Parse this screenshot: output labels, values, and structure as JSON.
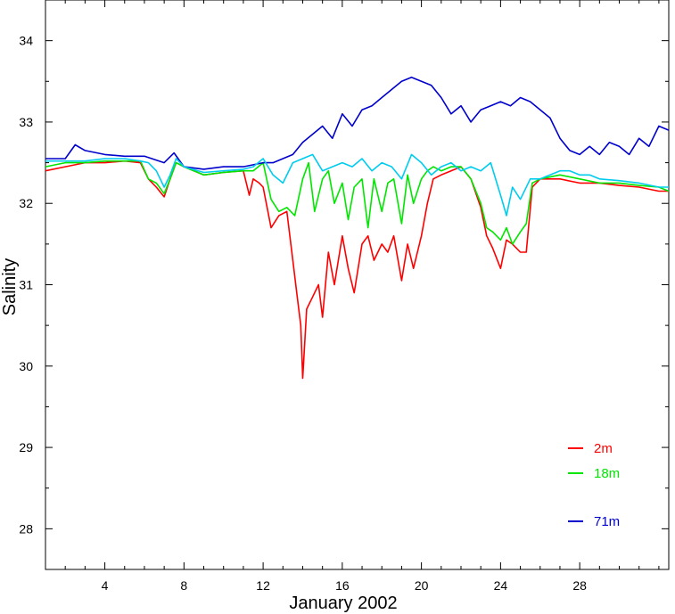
{
  "chart_data": {
    "type": "line",
    "xlabel": "January 2002",
    "ylabel": "Salinity",
    "xlim": [
      1,
      32.5
    ],
    "ylim": [
      27.5,
      34.5
    ],
    "xticks": [
      4,
      8,
      12,
      16,
      20,
      24,
      28
    ],
    "yticks": [
      28,
      29,
      30,
      31,
      32,
      33,
      34
    ],
    "grid": false,
    "legend_position": "bottom-right",
    "series": [
      {
        "name": "2m",
        "color": "#ff0000",
        "x": [
          1,
          2,
          3,
          4,
          5,
          5.8,
          6.2,
          6.6,
          7.0,
          7.3,
          7.6,
          8.0,
          9.0,
          10.0,
          11.0,
          11.3,
          11.5,
          11.8,
          12.0,
          12.4,
          12.8,
          13.2,
          13.5,
          13.7,
          13.9,
          14.0,
          14.2,
          14.5,
          14.8,
          15.0,
          15.3,
          15.6,
          16.0,
          16.3,
          16.6,
          17.0,
          17.3,
          17.6,
          18.0,
          18.3,
          18.6,
          19.0,
          19.3,
          19.6,
          20.0,
          20.3,
          20.6,
          21.0,
          21.5,
          22.0,
          22.5,
          23.0,
          23.3,
          23.6,
          24.0,
          24.3,
          24.6,
          25.0,
          25.3,
          25.6,
          26.0,
          27.0,
          28.0,
          29.0,
          30.0,
          31.0,
          32.0,
          32.5
        ],
        "y": [
          32.4,
          32.45,
          32.5,
          32.5,
          32.52,
          32.5,
          32.3,
          32.2,
          32.08,
          32.3,
          32.5,
          32.45,
          32.35,
          32.38,
          32.4,
          32.1,
          32.3,
          32.25,
          32.2,
          31.7,
          31.85,
          31.9,
          31.3,
          30.9,
          30.5,
          29.85,
          30.7,
          30.85,
          31.0,
          30.6,
          31.4,
          31.0,
          31.6,
          31.2,
          30.9,
          31.5,
          31.6,
          31.3,
          31.5,
          31.4,
          31.6,
          31.05,
          31.5,
          31.2,
          31.6,
          32.0,
          32.3,
          32.35,
          32.4,
          32.45,
          32.3,
          31.95,
          31.6,
          31.45,
          31.2,
          31.55,
          31.5,
          31.4,
          31.4,
          32.2,
          32.3,
          32.3,
          32.25,
          32.25,
          32.22,
          32.2,
          32.15,
          32.15
        ]
      },
      {
        "name": "18m",
        "color": "#00e600",
        "x": [
          1,
          2,
          3,
          4,
          5,
          5.8,
          6.2,
          6.6,
          7.0,
          7.3,
          7.6,
          8.0,
          9.0,
          10.0,
          11.0,
          11.5,
          12.0,
          12.4,
          12.8,
          13.2,
          13.6,
          14.0,
          14.3,
          14.6,
          15.0,
          15.3,
          15.6,
          16.0,
          16.3,
          16.6,
          17.0,
          17.3,
          17.6,
          18.0,
          18.3,
          18.6,
          19.0,
          19.3,
          19.6,
          20.0,
          20.3,
          20.6,
          21.0,
          21.5,
          22.0,
          22.5,
          23.0,
          23.3,
          23.6,
          24.0,
          24.3,
          24.6,
          25.0,
          25.3,
          25.6,
          26.0,
          27.0,
          28.0,
          29.0,
          30.0,
          31.0,
          32.0,
          32.5
        ],
        "y": [
          32.45,
          32.5,
          32.5,
          32.52,
          32.52,
          32.52,
          32.3,
          32.25,
          32.12,
          32.3,
          32.5,
          32.45,
          32.35,
          32.38,
          32.4,
          32.4,
          32.5,
          32.05,
          31.9,
          31.95,
          31.85,
          32.3,
          32.5,
          31.9,
          32.3,
          32.4,
          32.0,
          32.25,
          31.8,
          32.2,
          32.3,
          31.7,
          32.3,
          31.9,
          32.25,
          32.3,
          31.75,
          32.35,
          32.0,
          32.3,
          32.4,
          32.45,
          32.4,
          32.45,
          32.45,
          32.3,
          32.0,
          31.7,
          31.65,
          31.55,
          31.7,
          31.5,
          31.65,
          31.75,
          32.25,
          32.3,
          32.35,
          32.3,
          32.25,
          32.25,
          32.22,
          32.2,
          32.15
        ]
      },
      {
        "name": "71m",
        "color": "#0000cc",
        "x": [
          1,
          2,
          2.5,
          3,
          4,
          5,
          6,
          7,
          7.5,
          8,
          9,
          10,
          11,
          12,
          12.5,
          13,
          13.5,
          14,
          14.5,
          15,
          15.5,
          16,
          16.5,
          17,
          17.5,
          18,
          18.5,
          19,
          19.5,
          20,
          20.5,
          21,
          21.5,
          22,
          22.5,
          23,
          23.5,
          24,
          24.5,
          25,
          25.5,
          26,
          26.5,
          27,
          27.5,
          28,
          28.5,
          29,
          29.5,
          30,
          30.5,
          31,
          31.5,
          32,
          32.5
        ],
        "y": [
          32.55,
          32.55,
          32.72,
          32.65,
          32.6,
          32.58,
          32.58,
          32.5,
          32.62,
          32.45,
          32.42,
          32.45,
          32.45,
          32.5,
          32.5,
          32.55,
          32.6,
          32.75,
          32.85,
          32.95,
          32.8,
          33.1,
          32.95,
          33.15,
          33.2,
          33.3,
          33.4,
          33.5,
          33.55,
          33.5,
          33.45,
          33.3,
          33.1,
          33.2,
          33.0,
          33.15,
          33.2,
          33.25,
          33.2,
          33.3,
          33.25,
          33.15,
          33.05,
          32.8,
          32.65,
          32.6,
          32.7,
          32.6,
          32.75,
          32.7,
          32.6,
          32.8,
          32.7,
          32.95,
          32.9
        ]
      },
      {
        "name": "",
        "color": "#00ccee",
        "x": [
          1,
          2,
          3,
          4,
          5,
          5.8,
          6.2,
          6.6,
          7.0,
          7.3,
          7.6,
          8.0,
          9.0,
          10.0,
          11.0,
          11.5,
          12.0,
          12.5,
          13.0,
          13.5,
          14.0,
          14.5,
          15.0,
          15.5,
          16.0,
          16.5,
          17.0,
          17.5,
          18.0,
          18.5,
          19.0,
          19.5,
          20.0,
          20.5,
          21.0,
          21.5,
          22.0,
          22.5,
          23.0,
          23.5,
          24.0,
          24.3,
          24.6,
          25.0,
          25.5,
          26.0,
          26.5,
          27.0,
          27.5,
          28.0,
          28.5,
          29.0,
          30.0,
          31.0,
          32.0,
          32.5
        ],
        "y": [
          32.52,
          32.52,
          32.52,
          32.55,
          32.55,
          32.52,
          32.5,
          32.4,
          32.2,
          32.35,
          32.55,
          32.45,
          32.38,
          32.4,
          32.42,
          32.45,
          32.55,
          32.35,
          32.25,
          32.5,
          32.55,
          32.6,
          32.4,
          32.45,
          32.5,
          32.45,
          32.55,
          32.4,
          32.5,
          32.45,
          32.3,
          32.6,
          32.5,
          32.35,
          32.45,
          32.5,
          32.4,
          32.45,
          32.4,
          32.5,
          32.1,
          31.85,
          32.2,
          32.05,
          32.3,
          32.3,
          32.35,
          32.4,
          32.4,
          32.35,
          32.35,
          32.3,
          32.28,
          32.25,
          32.2,
          32.2
        ]
      }
    ]
  }
}
